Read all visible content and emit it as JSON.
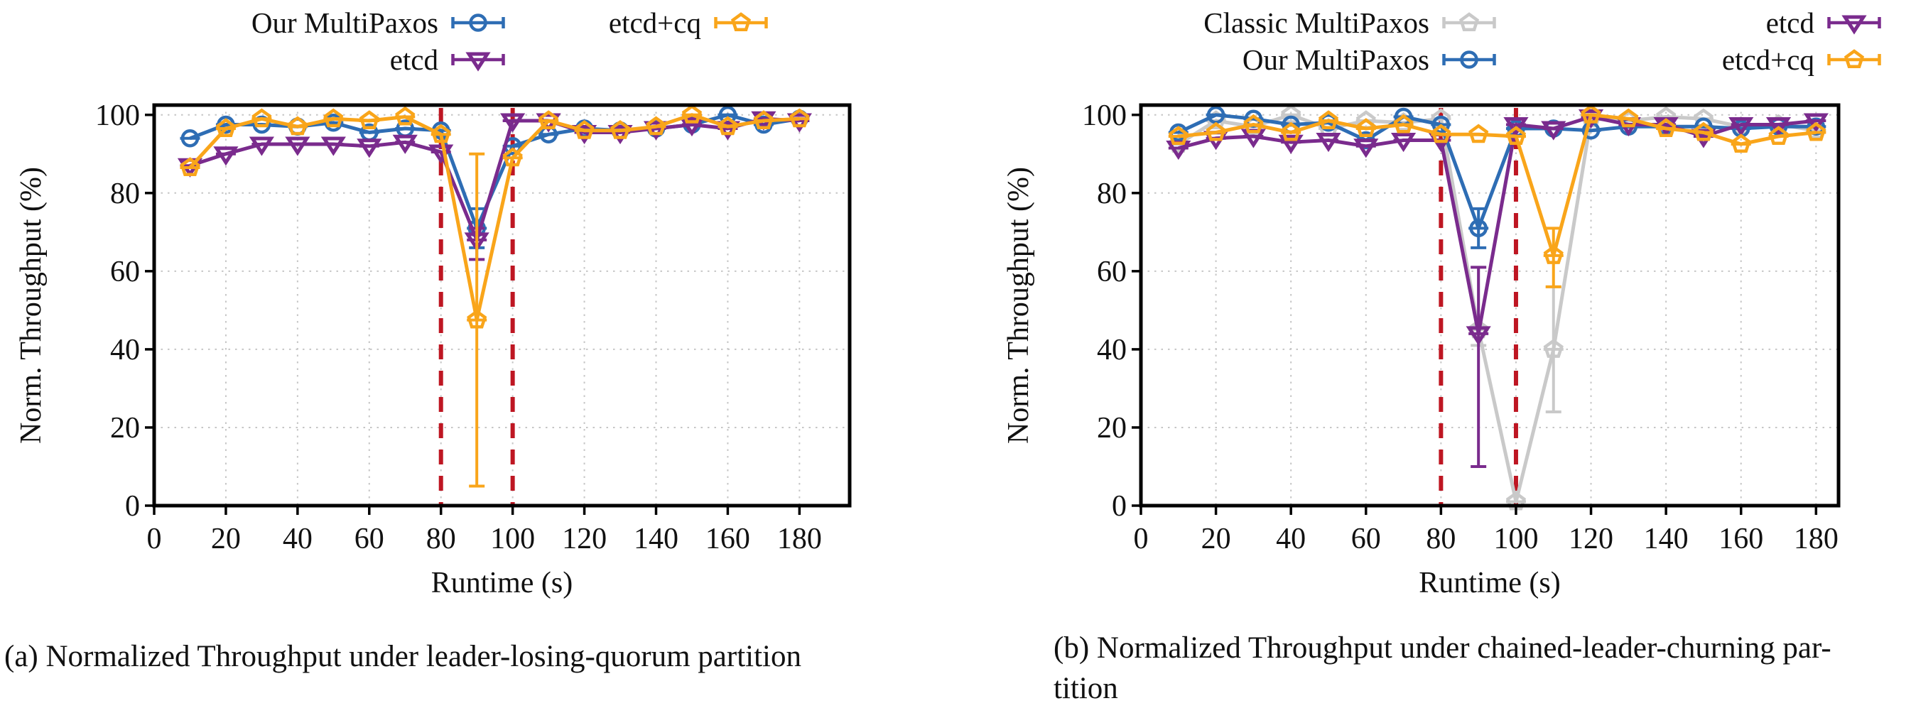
{
  "figure": {
    "captions": {
      "a": "(a) Normalized Throughput under leader-losing-quorum partition",
      "b_line1": "(b) Normalized Throughput under chained-leader-churning par-",
      "b_line2": "tition"
    }
  },
  "colors": {
    "blue": "#2e6db4",
    "purple": "#7a2b8d",
    "orange": "#f9a51a",
    "gray": "#c9c9c9",
    "partition_line": "#be1622",
    "axis": "#000000",
    "grid": "#c6c6c6",
    "text": "#111111"
  },
  "chart_data": [
    {
      "id": "a",
      "type": "line",
      "title": "",
      "xlabel": "Runtime (s)",
      "ylabel": "Norm. Throughput (%)",
      "xlim": [
        0,
        194
      ],
      "ylim": [
        0,
        102.5
      ],
      "xticks": [
        0,
        20,
        40,
        60,
        80,
        100,
        120,
        140,
        160,
        180
      ],
      "yticks": [
        0,
        20,
        40,
        60,
        80,
        100
      ],
      "grid": true,
      "legend_position": "top",
      "partition_lines_x": [
        80,
        100
      ],
      "x": [
        10,
        20,
        30,
        40,
        50,
        60,
        70,
        80,
        90,
        100,
        110,
        120,
        130,
        140,
        150,
        160,
        170,
        180
      ],
      "series": [
        {
          "name": "Our MultiPaxos",
          "color_key": "blue",
          "marker": "circle",
          "values": [
            94,
            97.5,
            97.5,
            97,
            98,
            95.5,
            96.5,
            96,
            71,
            92,
            95,
            96.5,
            96,
            96.5,
            97.5,
            100,
            97.5,
            99
          ],
          "error_bars": [
            {
              "x": 90,
              "lo": 66,
              "hi": 76
            }
          ]
        },
        {
          "name": "etcd",
          "color_key": "purple",
          "marker": "triangle-down",
          "values": [
            87,
            90,
            92.5,
            92.5,
            92.5,
            92,
            93,
            90.5,
            68,
            98.5,
            98.5,
            95.5,
            95.5,
            96.5,
            97.5,
            96.5,
            99,
            98.5
          ],
          "error_bars": [
            {
              "x": 90,
              "lo": 63,
              "hi": 71
            }
          ]
        },
        {
          "name": "etcd+cq",
          "color_key": "orange",
          "marker": "pentagon",
          "values": [
            86.5,
            96.5,
            99,
            97,
            99,
            98.5,
            99.5,
            95,
            47.5,
            89,
            98.5,
            96,
            96,
            97,
            100,
            97,
            98.5,
            99
          ],
          "error_bars": [
            {
              "x": 90,
              "lo": 5,
              "hi": 90
            }
          ]
        }
      ],
      "legend_columns": [
        [
          "Our MultiPaxos",
          "etcd"
        ],
        [
          "etcd+cq"
        ]
      ]
    },
    {
      "id": "b",
      "type": "line",
      "title": "",
      "xlabel": "Runtime (s)",
      "ylabel": "Norm. Throughput (%)",
      "xlim": [
        0,
        186
      ],
      "ylim": [
        0,
        102.5
      ],
      "xticks": [
        0,
        20,
        40,
        60,
        80,
        100,
        120,
        140,
        160,
        180
      ],
      "yticks": [
        0,
        20,
        40,
        60,
        80,
        100
      ],
      "grid": true,
      "legend_position": "top",
      "partition_lines_x": [
        80,
        100
      ],
      "x": [
        10,
        20,
        30,
        40,
        50,
        60,
        70,
        80,
        90,
        100,
        110,
        120,
        130,
        140,
        150,
        160,
        170,
        180
      ],
      "series": [
        {
          "name": "Classic MultiPaxos",
          "color_key": "gray",
          "marker": "pentagon",
          "values": [
            92.5,
            98.5,
            97,
            100,
            96.5,
            98.5,
            98,
            99,
            45,
            1,
            40,
            99,
            98.5,
            99.5,
            99,
            97,
            97.5,
            96
          ],
          "error_bars": [
            {
              "x": 90,
              "lo": 41,
              "hi": 61
            },
            {
              "x": 110,
              "lo": 24,
              "hi": 56
            }
          ]
        },
        {
          "name": "Our MultiPaxos",
          "color_key": "blue",
          "marker": "circle",
          "values": [
            95.5,
            100,
            99,
            97.5,
            98,
            93.5,
            99.5,
            97.5,
            71,
            96.5,
            96.5,
            96,
            97,
            97,
            97,
            96.5,
            97,
            97
          ],
          "error_bars": [
            {
              "x": 90,
              "lo": 66,
              "hi": 76
            }
          ]
        },
        {
          "name": "etcd",
          "color_key": "purple",
          "marker": "triangle-down",
          "values": [
            91.5,
            94,
            94.5,
            93,
            93.5,
            92,
            93.5,
            93.5,
            44,
            97.5,
            96.5,
            99.5,
            97.5,
            97.5,
            94.5,
            97.5,
            97.5,
            98.5
          ],
          "error_bars": [
            {
              "x": 90,
              "lo": 10,
              "hi": 61
            }
          ]
        },
        {
          "name": "etcd+cq",
          "color_key": "orange",
          "marker": "pentagon",
          "values": [
            94.5,
            95.5,
            97.5,
            95.5,
            98.5,
            96.5,
            97.5,
            95,
            95,
            94.5,
            64,
            100,
            99,
            96.5,
            95.5,
            92.5,
            94.5,
            95.5
          ],
          "error_bars": [
            {
              "x": 110,
              "lo": 56,
              "hi": 71
            }
          ]
        }
      ],
      "legend_columns": [
        [
          "Classic MultiPaxos",
          "Our MultiPaxos"
        ],
        [
          "etcd",
          "etcd+cq"
        ]
      ]
    }
  ]
}
